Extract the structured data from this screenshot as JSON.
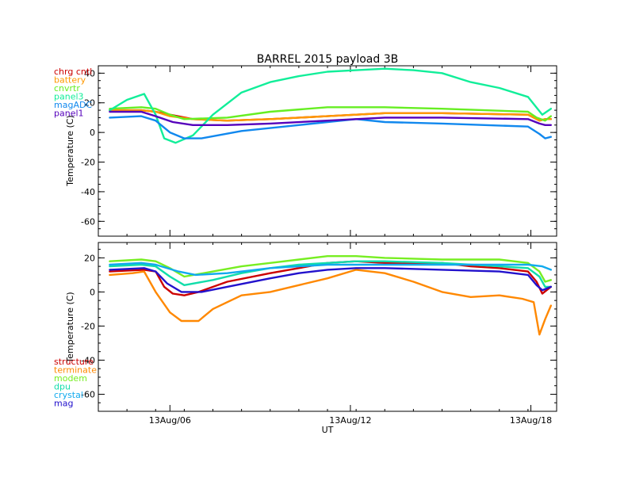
{
  "chart_data": [
    {
      "type": "line",
      "title": "BARREL 2015 payload 3B",
      "ylabel": "Temperature (C)",
      "xlabel": "",
      "ylim": [
        -70,
        45
      ],
      "yticks": [
        40,
        20,
        0,
        -20,
        -40,
        -60
      ],
      "xlim": [
        0,
        16
      ],
      "grid": false,
      "legend_position": "top-left outside",
      "series": [
        {
          "name": "chrg cntl",
          "color": "#cc0000",
          "x": [
            0.4,
            1.5,
            2.0,
            2.5,
            3.3,
            4.5,
            6,
            8,
            9,
            10,
            12,
            15,
            15.4,
            15.6,
            15.8
          ],
          "y": [
            15,
            15,
            14,
            12,
            9,
            8,
            9,
            11,
            12,
            13,
            13,
            12,
            8,
            9,
            9
          ]
        },
        {
          "name": "battery",
          "color": "#ff9900",
          "x": [
            0.4,
            1.5,
            2.0,
            2.5,
            3.3,
            4.5,
            6,
            8,
            9,
            10,
            12,
            15,
            15.4,
            15.6,
            15.8
          ],
          "y": [
            15,
            15,
            14,
            11,
            9,
            8,
            9,
            11,
            12,
            13,
            13,
            12,
            8,
            9,
            9
          ]
        },
        {
          "name": "cnvrtr",
          "color": "#66ee22",
          "x": [
            0.4,
            1.5,
            2.0,
            2.5,
            3.0,
            4.5,
            6,
            8,
            9,
            10,
            12,
            15,
            15.3,
            15.6,
            15.8
          ],
          "y": [
            16,
            17,
            16,
            12,
            9,
            10,
            14,
            17,
            17,
            17,
            16,
            14,
            10,
            8,
            11
          ]
        },
        {
          "name": "panel3",
          "color": "#11ee99",
          "x": [
            0.4,
            1.0,
            1.6,
            2.0,
            2.3,
            2.7,
            3.3,
            4.0,
            5,
            6,
            7,
            8,
            9,
            10,
            11,
            12,
            13,
            14,
            15,
            15.5,
            15.8
          ],
          "y": [
            15,
            22,
            26,
            12,
            -4,
            -7,
            -2,
            12,
            27,
            34,
            38,
            41,
            42,
            43,
            42,
            40,
            34,
            30,
            24,
            12,
            16
          ]
        },
        {
          "name": "magADC",
          "color": "#1188ee",
          "x": [
            0.4,
            1.5,
            2.0,
            2.5,
            3.0,
            3.6,
            5,
            7,
            8,
            9,
            10,
            12,
            15,
            15.4,
            15.6,
            15.8
          ],
          "y": [
            10,
            11,
            8,
            0,
            -4,
            -4,
            1,
            5,
            7,
            9,
            7,
            6,
            4,
            -1,
            -4,
            -3
          ]
        },
        {
          "name": "panel1",
          "color": "#5500bb",
          "x": [
            0.4,
            1.5,
            2.0,
            2.6,
            3.3,
            4.5,
            6,
            8,
            9,
            10,
            12,
            15,
            15.4,
            15.6,
            15.8
          ],
          "y": [
            14,
            14,
            11,
            7,
            5,
            5,
            6,
            8,
            9,
            10,
            10,
            9,
            6,
            5,
            5
          ]
        }
      ]
    },
    {
      "type": "line",
      "title": "",
      "ylabel": "Temperature (C)",
      "xlabel": "UT",
      "ylim": [
        -70,
        29
      ],
      "yticks": [
        20,
        0,
        -20,
        -40,
        -60
      ],
      "xlim": [
        0,
        16
      ],
      "xticks": [
        2.5,
        8.8,
        15.1
      ],
      "xticklabels": [
        "13Aug/06",
        "13Aug/12",
        "13Aug/18"
      ],
      "grid": false,
      "legend_position": "bottom-left outside",
      "series": [
        {
          "name": "structure",
          "color": "#cc0000",
          "x": [
            0.4,
            1.6,
            2.0,
            2.3,
            2.6,
            3.0,
            3.5,
            4.5,
            6,
            7,
            8,
            9,
            10,
            12,
            13,
            14,
            15,
            15.3,
            15.5,
            15.8
          ],
          "y": [
            12,
            13,
            12,
            3,
            -1,
            -2,
            0,
            6,
            11,
            14,
            17,
            18,
            17,
            17,
            15,
            14,
            12,
            6,
            -1,
            3
          ]
        },
        {
          "name": "terminate",
          "color": "#ff8800",
          "x": [
            0.4,
            1.2,
            1.6,
            2.0,
            2.5,
            2.9,
            3.5,
            4.0,
            5,
            6,
            7,
            8,
            9,
            10,
            11,
            12,
            13,
            14,
            14.8,
            15.2,
            15.4,
            15.6,
            15.8
          ],
          "y": [
            10,
            11,
            12,
            0,
            -12,
            -17,
            -17,
            -10,
            -2,
            0,
            4,
            8,
            13,
            11,
            6,
            0,
            -3,
            -2,
            -4,
            -6,
            -25,
            -16,
            -8
          ]
        },
        {
          "name": "modem",
          "color": "#77ee22",
          "x": [
            0.4,
            1.5,
            2.0,
            2.5,
            3.0,
            4.0,
            5,
            6,
            7,
            8,
            9,
            10,
            12,
            14,
            15,
            15.4,
            15.6,
            15.8
          ],
          "y": [
            18,
            19,
            18,
            14,
            9,
            12,
            15,
            17,
            19,
            21,
            21,
            20,
            19,
            19,
            17,
            12,
            6,
            7
          ]
        },
        {
          "name": "dpu",
          "color": "#11ddaa",
          "x": [
            0.4,
            1.5,
            2.0,
            2.5,
            3.0,
            4.0,
            5,
            6,
            7,
            8,
            9,
            10,
            12,
            14,
            15,
            15.4,
            15.6,
            15.8
          ],
          "y": [
            15,
            16,
            15,
            9,
            4,
            7,
            11,
            14,
            16,
            17,
            18,
            18,
            17,
            15,
            14,
            9,
            3,
            3
          ]
        },
        {
          "name": "crystal",
          "color": "#11aaee",
          "x": [
            0.4,
            1.5,
            2.0,
            2.8,
            3.4,
            4.5,
            6,
            7,
            8,
            9,
            10,
            12,
            14,
            15,
            15.5,
            15.8
          ],
          "y": [
            16,
            17,
            16,
            12,
            10,
            11,
            14,
            15,
            16,
            16,
            16,
            16,
            16,
            16,
            15,
            13
          ]
        },
        {
          "name": "mag",
          "color": "#2211cc",
          "x": [
            0.4,
            1.6,
            2.0,
            2.4,
            2.9,
            3.6,
            4.5,
            6,
            7,
            8,
            9,
            10,
            12,
            14,
            15,
            15.3,
            15.5,
            15.8
          ],
          "y": [
            13,
            14,
            12,
            5,
            0,
            0,
            3,
            8,
            11,
            13,
            14,
            14,
            13,
            12,
            10,
            4,
            1,
            3
          ]
        }
      ]
    }
  ]
}
